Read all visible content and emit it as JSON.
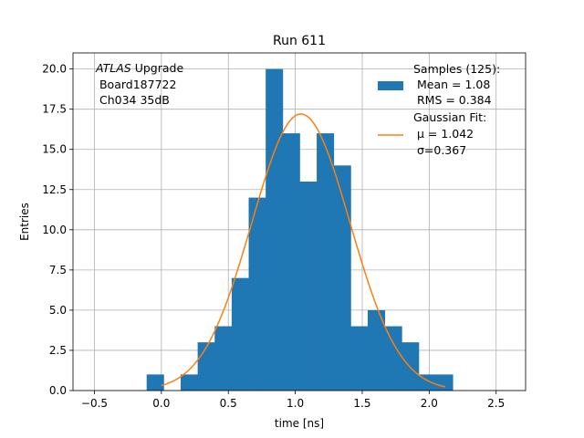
{
  "chart_data": {
    "type": "bar",
    "title": "Run 611",
    "xlabel": "time [ns]",
    "ylabel": "Entries",
    "xlim": [
      -0.66,
      2.72
    ],
    "ylim": [
      0,
      21
    ],
    "grid": true,
    "xticks": [
      -0.5,
      0.0,
      0.5,
      1.0,
      1.5,
      2.0,
      2.5
    ],
    "xtick_labels": [
      "−0.5",
      "0.0",
      "0.5",
      "1.0",
      "1.5",
      "2.0",
      "2.5"
    ],
    "yticks": [
      0,
      2.5,
      5,
      7.5,
      10,
      12.5,
      15,
      17.5,
      20
    ],
    "ytick_labels": [
      "0.0",
      "2.5",
      "5.0",
      "7.5",
      "10.0",
      "12.5",
      "15.0",
      "17.5",
      "20.0"
    ],
    "hist_color": "#1f77b4",
    "fit_color": "#ff7f0e",
    "bin_edges": [
      -0.11,
      0.017,
      0.144,
      0.271,
      0.398,
      0.525,
      0.652,
      0.779,
      0.906,
      1.033,
      1.16,
      1.287,
      1.414,
      1.541,
      1.668,
      1.795,
      1.922,
      2.049,
      2.176
    ],
    "counts": [
      1,
      0,
      1,
      3,
      4,
      7,
      12,
      20,
      16,
      13,
      16,
      14,
      4,
      5,
      4,
      3,
      1,
      1
    ],
    "fit": {
      "mu": 1.042,
      "sigma": 0.367,
      "amplitude": 17.2,
      "x_start": 0.0,
      "x_end": 2.12
    },
    "annotation_lines": [
      "ATLAS Upgrade",
      " Board187722",
      " Ch034 35dB"
    ],
    "annotation_italic_word": "ATLAS",
    "annotation_rest": " Upgrade",
    "legend_location": "upper right",
    "legend": [
      {
        "kind": "patch",
        "lines": [
          "Samples (125):",
          " Mean = 1.08",
          " RMS = 0.384"
        ]
      },
      {
        "kind": "line",
        "lines": [
          "Gaussian Fit:",
          " μ = 1.042",
          " σ=0.367"
        ]
      }
    ]
  }
}
